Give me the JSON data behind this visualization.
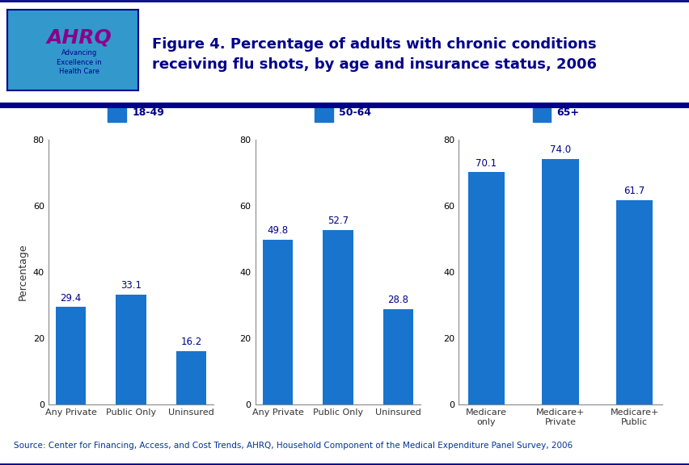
{
  "title": "Figure 4. Percentage of adults with chronic conditions\nreceiving flu shots, by age and insurance status, 2006",
  "title_color": "#00008B",
  "source_text": "Source: Center for Financing, Access, and Cost Trends, AHRQ, Household Component of the Medical Expenditure Panel Survey, 2006",
  "ylabel": "Percentage",
  "bar_color": "#1874CD",
  "ylim": [
    0,
    80
  ],
  "yticks": [
    0,
    20,
    40,
    60,
    80
  ],
  "groups": [
    {
      "legend_label": "18-49",
      "categories": [
        "Any Private",
        "Public Only",
        "Uninsured"
      ],
      "values": [
        29.4,
        33.1,
        16.2
      ]
    },
    {
      "legend_label": "50-64",
      "categories": [
        "Any Private",
        "Public Only",
        "Uninsured"
      ],
      "values": [
        49.8,
        52.7,
        28.8
      ]
    },
    {
      "legend_label": "65+",
      "categories": [
        "Medicare\nonly",
        "Medicare+\nPrivate",
        "Medicare+\nPublic"
      ],
      "values": [
        70.1,
        74.0,
        61.7
      ]
    }
  ],
  "background_color": "#FFFFFF",
  "dark_blue": "#00008B",
  "medium_blue": "#1C4E9F",
  "label_fontsize": 8,
  "value_fontsize": 8.5,
  "legend_fontsize": 9,
  "axis_fontsize": 8,
  "ylabel_fontsize": 9,
  "title_fontsize": 13,
  "source_fontsize": 7.5
}
